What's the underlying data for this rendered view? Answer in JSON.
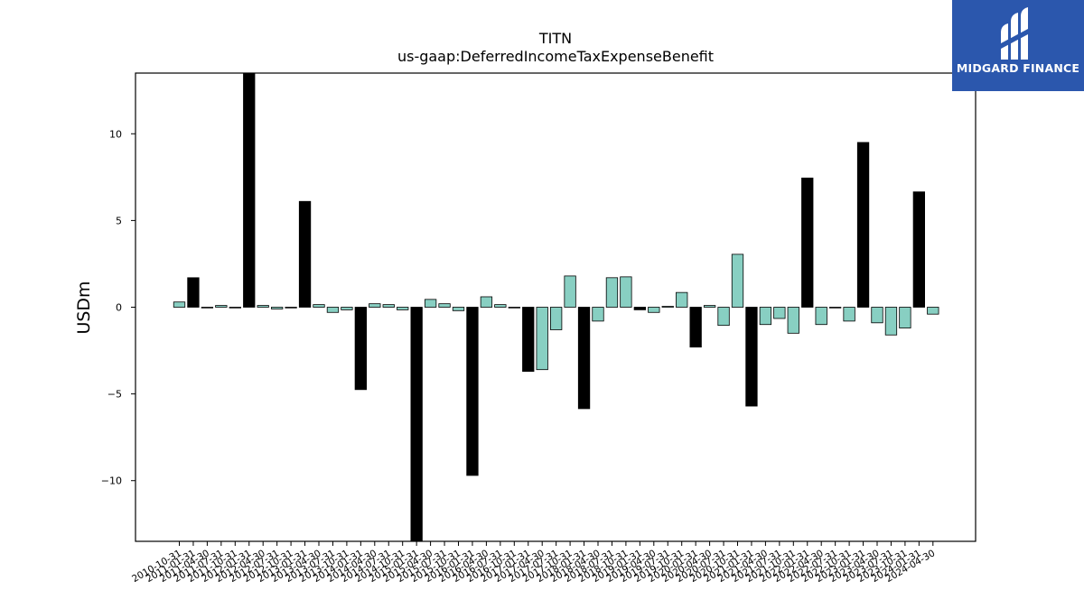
{
  "logo": {
    "text": "MIDGARD FINANCE",
    "background": "#2b57ad"
  },
  "chart_data": {
    "type": "bar",
    "title": "TITN",
    "subtitle": "us-gaap:DeferredIncomeTaxExpenseBenefit",
    "xlabel": "",
    "ylabel": "USDm",
    "ylim": [
      -13.5,
      13.5
    ],
    "yticks": [
      -10,
      -5,
      0,
      5,
      10
    ],
    "grid": false,
    "colors": {
      "quarterly": "#88cfc2",
      "annual": "#000000",
      "edge": "#000000"
    },
    "categories": [
      "2010-10-31",
      "2011-01-31",
      "2011-04-30",
      "2011-07-31",
      "2011-10-31",
      "2012-01-31",
      "2012-04-30",
      "2012-07-31",
      "2012-10-31",
      "2013-01-31",
      "2013-04-30",
      "2013-07-31",
      "2013-10-31",
      "2014-01-31",
      "2014-04-30",
      "2014-07-31",
      "2014-10-31",
      "2015-01-31",
      "2015-04-30",
      "2015-07-31",
      "2015-10-31",
      "2016-01-31",
      "2016-04-30",
      "2016-07-31",
      "2016-10-31",
      "2017-01-31",
      "2017-04-30",
      "2017-07-31",
      "2017-10-31",
      "2018-01-31",
      "2018-04-30",
      "2018-07-31",
      "2018-10-31",
      "2019-01-31",
      "2019-04-30",
      "2019-07-31",
      "2019-10-31",
      "2020-01-31",
      "2020-04-30",
      "2020-07-31",
      "2020-10-31",
      "2021-01-31",
      "2021-04-30",
      "2021-07-31",
      "2021-10-31",
      "2022-01-31",
      "2022-04-30",
      "2022-07-31",
      "2022-10-31",
      "2023-01-31",
      "2023-04-30",
      "2023-07-31",
      "2023-10-31",
      "2024-01-31",
      "2024-04-30"
    ],
    "values": [
      0.3,
      1.7,
      0.0,
      0.1,
      0.0,
      14.0,
      0.1,
      -0.1,
      0.0,
      6.1,
      0.15,
      -0.3,
      -0.15,
      -4.75,
      0.2,
      0.15,
      -0.15,
      -14.0,
      0.45,
      0.2,
      -0.2,
      -9.7,
      0.6,
      0.15,
      0.0,
      -3.7,
      -3.6,
      -1.3,
      1.8,
      -5.85,
      -0.8,
      1.7,
      1.75,
      -0.15,
      -0.3,
      0.05,
      0.85,
      -2.3,
      0.1,
      -1.05,
      3.05,
      -5.7,
      -1.0,
      -0.65,
      -1.5,
      7.45,
      -1.0,
      0.0,
      -0.8,
      9.5,
      -0.9,
      -1.6,
      -1.2,
      6.65,
      -0.4
    ],
    "annual": [
      false,
      true,
      false,
      false,
      false,
      true,
      false,
      false,
      false,
      true,
      false,
      false,
      false,
      true,
      false,
      false,
      false,
      true,
      false,
      false,
      false,
      true,
      false,
      false,
      false,
      true,
      false,
      false,
      false,
      true,
      false,
      false,
      false,
      true,
      false,
      false,
      false,
      true,
      false,
      false,
      false,
      true,
      false,
      false,
      false,
      true,
      false,
      false,
      false,
      true,
      false,
      false,
      false,
      true,
      false
    ]
  }
}
